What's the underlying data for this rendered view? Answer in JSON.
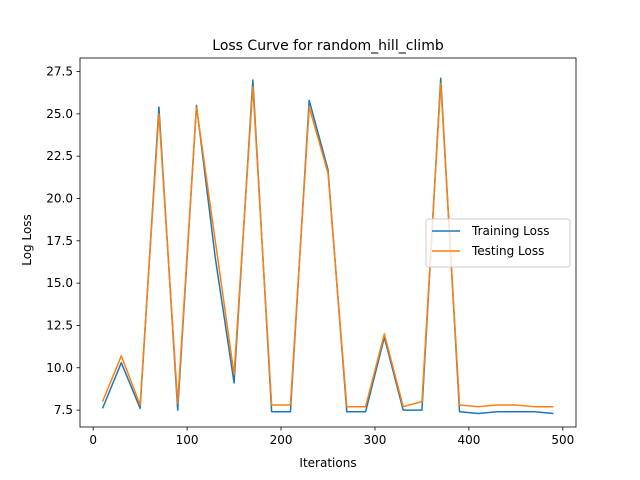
{
  "chart_data": {
    "type": "line",
    "title": "Loss Curve for random_hill_climb",
    "xlabel": "Iterations",
    "ylabel": "Log Loss",
    "xlim": [
      -14.0,
      514.0
    ],
    "ylim": [
      6.5,
      28.3
    ],
    "xticks": [
      0,
      100,
      200,
      300,
      400,
      500
    ],
    "xtick_labels": [
      "0",
      "100",
      "200",
      "300",
      "400",
      "500"
    ],
    "yticks": [
      7.5,
      10.0,
      12.5,
      15.0,
      17.5,
      20.0,
      22.5,
      25.0,
      27.5
    ],
    "ytick_labels": [
      "7.5",
      "10.0",
      "12.5",
      "15.0",
      "17.5",
      "20.0",
      "22.5",
      "25.0",
      "27.5"
    ],
    "grid": false,
    "legend_position": "center-right",
    "x": [
      10,
      30,
      50,
      70,
      90,
      110,
      130,
      150,
      170,
      190,
      210,
      230,
      250,
      270,
      290,
      310,
      330,
      350,
      370,
      390,
      410,
      430,
      450,
      470,
      490
    ],
    "series": [
      {
        "name": "Training Loss",
        "color": "#1f77b4",
        "values": [
          7.6,
          10.3,
          7.6,
          25.4,
          7.5,
          25.5,
          16.5,
          9.1,
          27.0,
          7.4,
          7.4,
          25.8,
          21.7,
          7.4,
          7.4,
          11.8,
          7.5,
          7.5,
          27.1,
          7.4,
          7.3,
          7.4,
          7.4,
          7.4,
          7.3
        ]
      },
      {
        "name": "Testing Loss",
        "color": "#ff7f0e",
        "values": [
          8.0,
          10.7,
          7.8,
          25.0,
          7.9,
          25.4,
          17.5,
          9.6,
          26.6,
          7.8,
          7.8,
          25.4,
          21.5,
          7.7,
          7.7,
          12.0,
          7.7,
          8.0,
          26.8,
          7.8,
          7.7,
          7.8,
          7.8,
          7.7,
          7.7
        ]
      }
    ]
  }
}
